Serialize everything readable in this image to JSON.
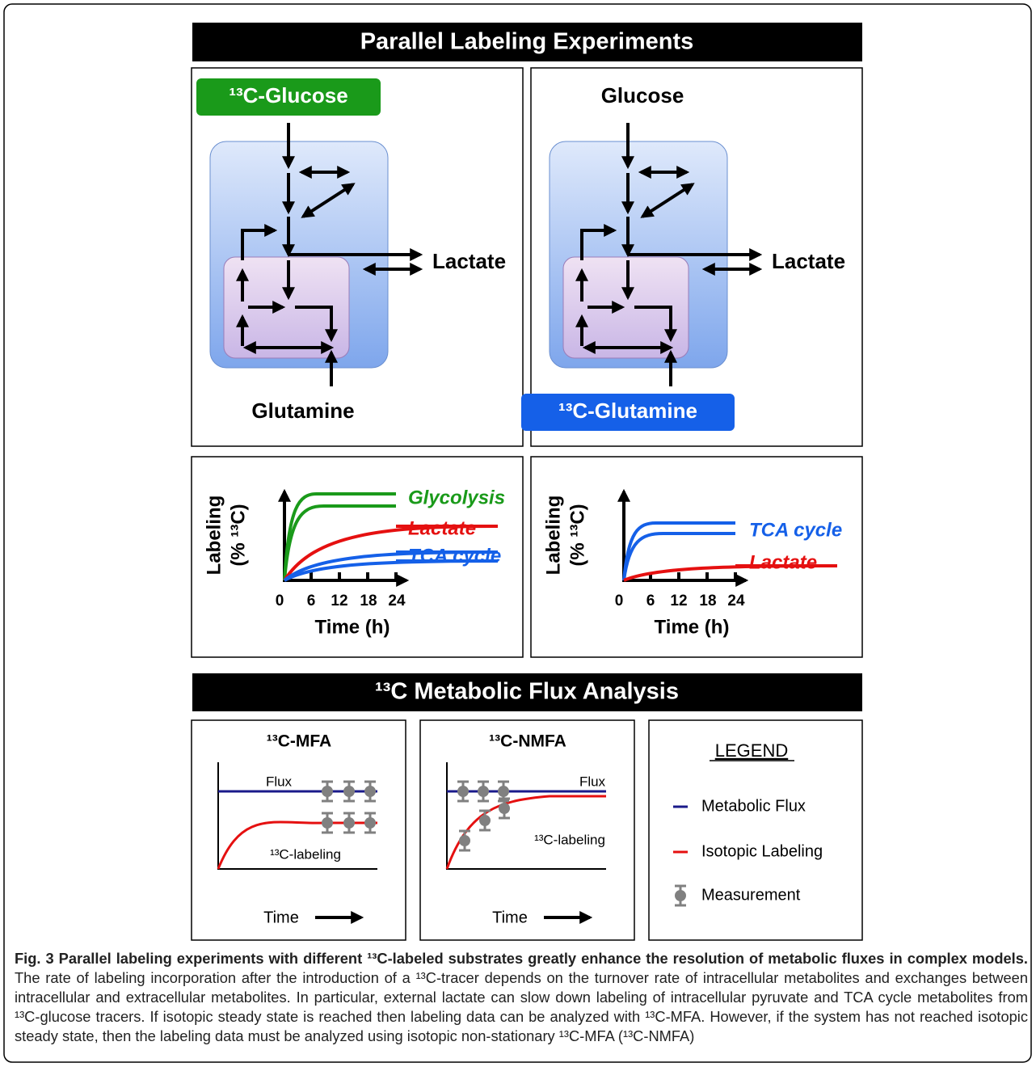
{
  "header": {
    "title": "Parallel Labeling Experiments"
  },
  "experiments": [
    {
      "top_label": "¹³C-Glucose",
      "bottom_label": "Glutamine",
      "product": "Lactate",
      "y_label": [
        "Labeling",
        "(% ¹³C)"
      ],
      "x_label": "Time (h)",
      "x_ticks": [
        "0",
        "6",
        "12",
        "18",
        "24"
      ],
      "series_labels": [
        "Glycolysis",
        "Lactate",
        "TCA cycle"
      ]
    },
    {
      "top_label": "Glucose",
      "bottom_label": "¹³C-Glutamine",
      "product": "Lactate",
      "y_label": [
        "Labeling",
        "(% ¹³C)"
      ],
      "x_label": "Time (h)",
      "x_ticks": [
        "0",
        "6",
        "12",
        "18",
        "24"
      ],
      "series_labels": [
        "TCA cycle",
        "Lactate"
      ]
    }
  ],
  "analysis": {
    "title": "¹³C Metabolic Flux Analysis",
    "panels": [
      {
        "title": "¹³C-MFA",
        "flux": "Flux",
        "labeling": "¹³C-labeling",
        "x_label": "Time"
      },
      {
        "title": "¹³C-NMFA",
        "flux": "Flux",
        "labeling": "¹³C-labeling",
        "x_label": "Time"
      }
    ],
    "legend": {
      "title": "LEGEND",
      "items": [
        "Metabolic Flux",
        "Isotopic Labeling",
        "Measurement"
      ]
    }
  },
  "caption": {
    "title": "Fig. 3 Parallel labeling experiments with different ¹³C-labeled substrates greatly enhance the resolution of metabolic fluxes in complex models.",
    "text": "The rate of labeling incorporation after the introduction of a ¹³C-tracer depends on the turnover rate of intracellular metabolites and exchanges between intracellular and extracellular metabolites. In particular, external lactate can slow down labeling of intracellular pyruvate and TCA cycle metabolites from ¹³C-glucose tracers. If isotopic steady state is reached then labeling data can be analyzed with ¹³C-MFA. However, if the system has not reached isotopic steady state, then the labeling data must be analyzed using isotopic non-stationary ¹³C-MFA (¹³C-NMFA)"
  }
}
